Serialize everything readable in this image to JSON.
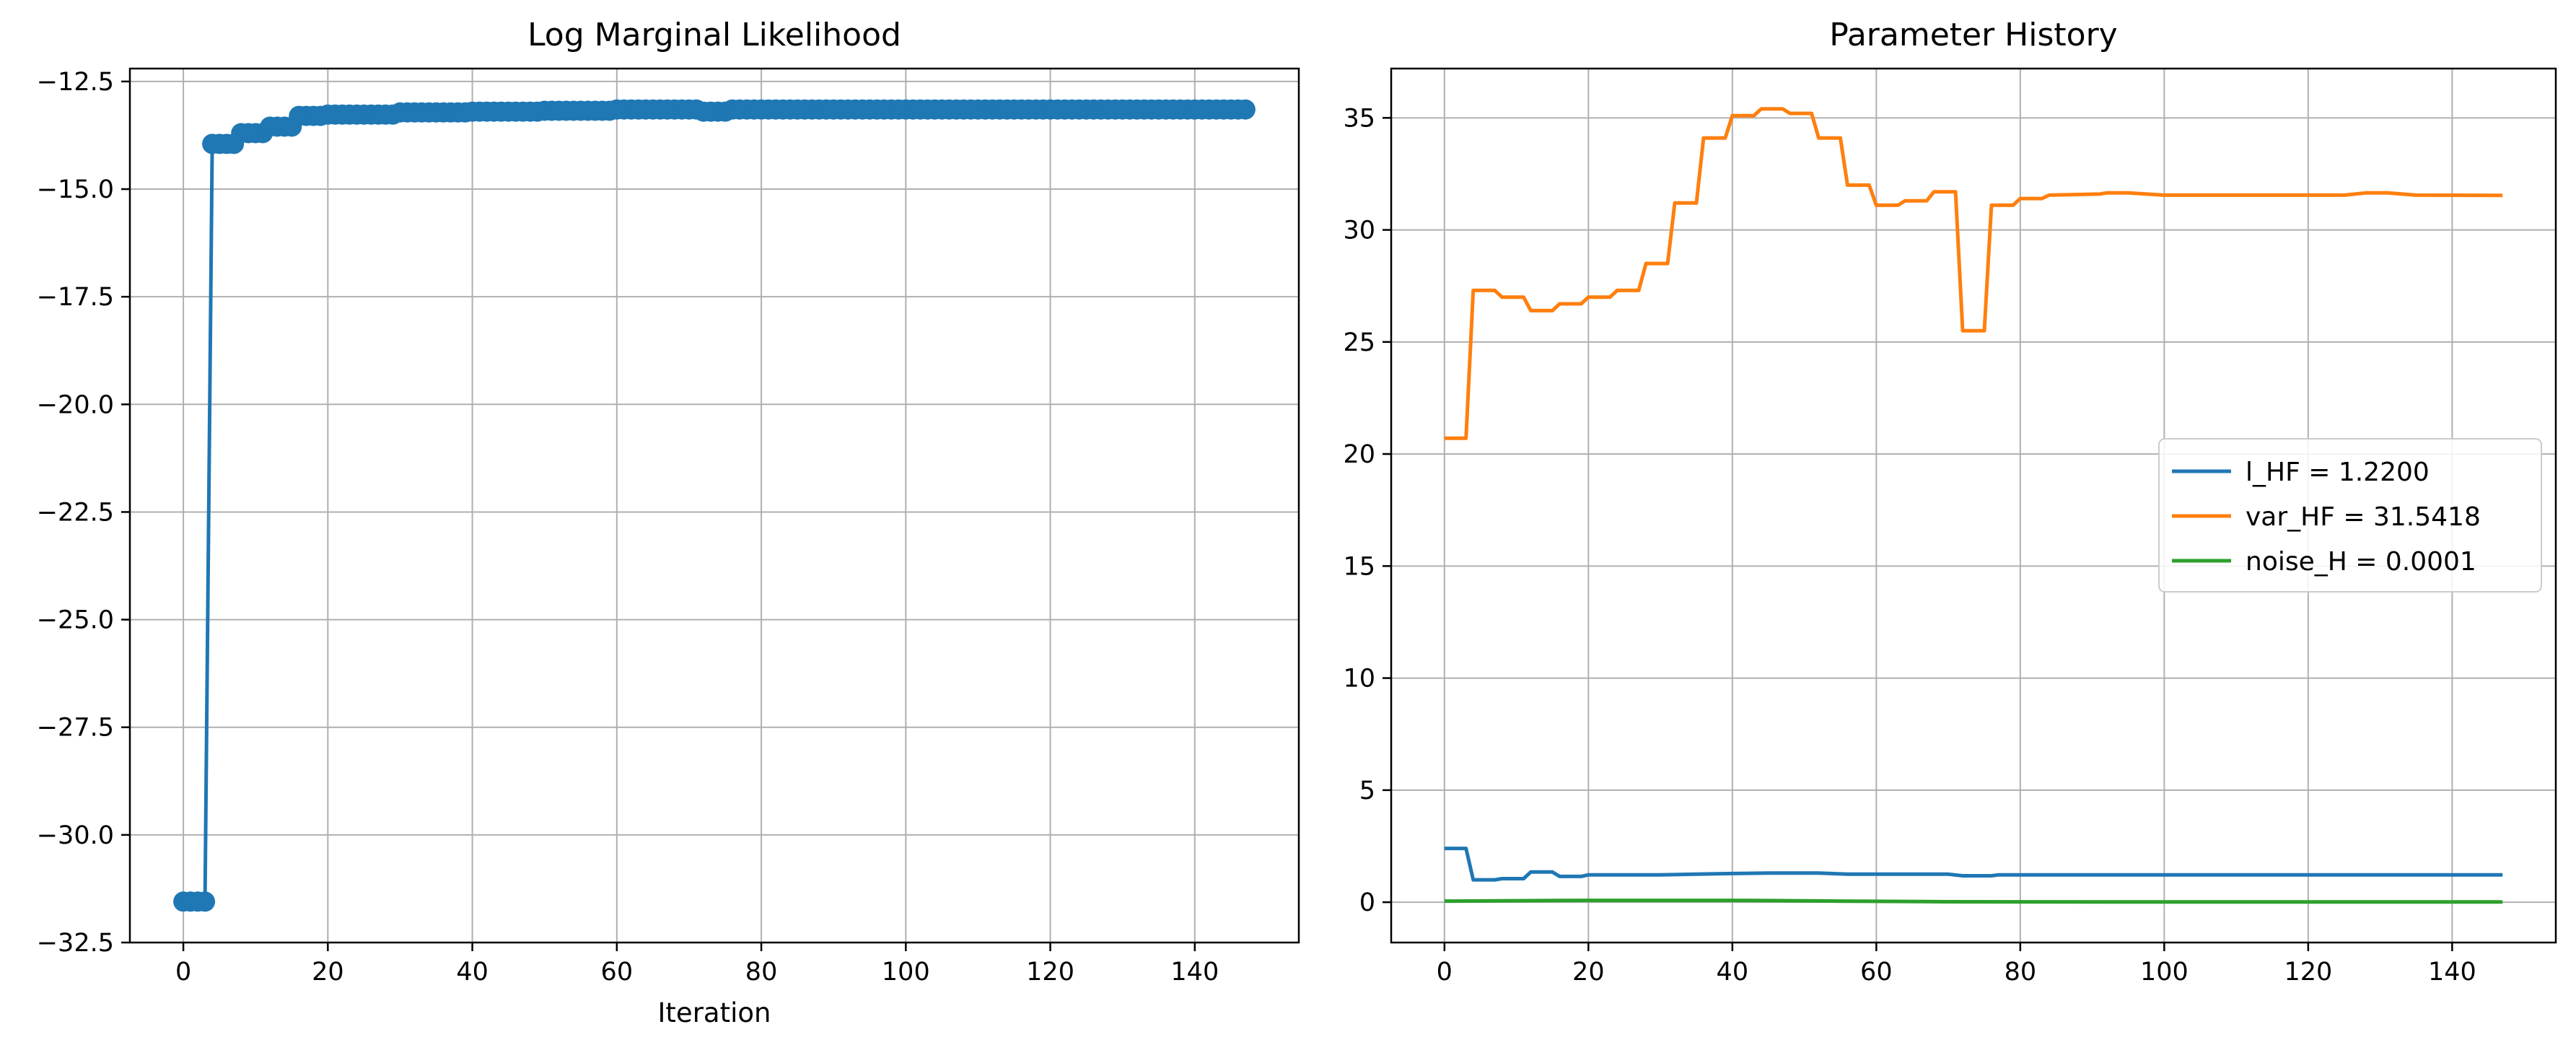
{
  "chart_data": [
    {
      "type": "line",
      "title": "Log Marginal Likelihood",
      "xlabel": "Iteration",
      "ylabel": "",
      "xlim": [
        -7.4,
        154.4
      ],
      "ylim": [
        -32.5,
        -12.2
      ],
      "xticks": [
        0,
        20,
        40,
        60,
        80,
        100,
        120,
        140
      ],
      "xtick_labels": [
        "0",
        "20",
        "40",
        "60",
        "80",
        "100",
        "120",
        "140"
      ],
      "yticks": [
        -32.5,
        -30.0,
        -27.5,
        -25.0,
        -22.5,
        -20.0,
        -17.5,
        -15.0,
        -12.5
      ],
      "ytick_labels": [
        "−32.5",
        "−30.0",
        "−27.5",
        "−25.0",
        "−22.5",
        "−20.0",
        "−17.5",
        "−15.0",
        "−12.5"
      ],
      "grid": true,
      "markers": true,
      "series": [
        {
          "color": "#1f77b4",
          "points": [
            [
              0,
              -31.55
            ],
            [
              3,
              -31.55
            ],
            [
              4,
              -13.95
            ],
            [
              7,
              -13.95
            ],
            [
              8,
              -13.7
            ],
            [
              11,
              -13.7
            ],
            [
              12,
              -13.55
            ],
            [
              15,
              -13.55
            ],
            [
              16,
              -13.3
            ],
            [
              20,
              -13.27
            ],
            [
              30,
              -13.22
            ],
            [
              40,
              -13.2
            ],
            [
              50,
              -13.18
            ],
            [
              60,
              -13.15
            ],
            [
              70,
              -13.15
            ],
            [
              72,
              -13.2
            ],
            [
              75,
              -13.2
            ],
            [
              76,
              -13.15
            ],
            [
              100,
              -13.15
            ],
            [
              147,
              -13.15
            ]
          ]
        }
      ]
    },
    {
      "type": "line",
      "title": "Parameter History",
      "xlabel": "",
      "ylabel": "",
      "xlim": [
        -7.4,
        154.4
      ],
      "ylim": [
        -1.8,
        37.2
      ],
      "xticks": [
        0,
        20,
        40,
        60,
        80,
        100,
        120,
        140
      ],
      "xtick_labels": [
        "0",
        "20",
        "40",
        "60",
        "80",
        "100",
        "120",
        "140"
      ],
      "yticks": [
        0,
        5,
        10,
        15,
        20,
        25,
        30,
        35
      ],
      "ytick_labels": [
        "0",
        "5",
        "10",
        "15",
        "20",
        "25",
        "30",
        "35"
      ],
      "grid": true,
      "markers": false,
      "legend": "center-right",
      "series": [
        {
          "name": "l_HF = 1.2200",
          "color": "#1f77b4",
          "points": [
            [
              0,
              2.4
            ],
            [
              3,
              2.4
            ],
            [
              4,
              1.0
            ],
            [
              7,
              1.0
            ],
            [
              8,
              1.05
            ],
            [
              11,
              1.05
            ],
            [
              12,
              1.35
            ],
            [
              15,
              1.35
            ],
            [
              16,
              1.15
            ],
            [
              19,
              1.15
            ],
            [
              20,
              1.22
            ],
            [
              30,
              1.22
            ],
            [
              35,
              1.25
            ],
            [
              40,
              1.28
            ],
            [
              45,
              1.3
            ],
            [
              52,
              1.3
            ],
            [
              56,
              1.25
            ],
            [
              60,
              1.25
            ],
            [
              70,
              1.25
            ],
            [
              72,
              1.18
            ],
            [
              76,
              1.18
            ],
            [
              77,
              1.22
            ],
            [
              100,
              1.22
            ],
            [
              147,
              1.22
            ]
          ]
        },
        {
          "name": "var_HF = 31.5418",
          "color": "#ff7f0e",
          "points": [
            [
              0,
              20.7
            ],
            [
              3,
              20.7
            ],
            [
              4,
              27.3
            ],
            [
              7,
              27.3
            ],
            [
              8,
              27.0
            ],
            [
              11,
              27.0
            ],
            [
              12,
              26.4
            ],
            [
              15,
              26.4
            ],
            [
              16,
              26.7
            ],
            [
              19,
              26.7
            ],
            [
              20,
              27.0
            ],
            [
              23,
              27.0
            ],
            [
              24,
              27.3
            ],
            [
              27,
              27.3
            ],
            [
              28,
              28.5
            ],
            [
              31,
              28.5
            ],
            [
              32,
              31.2
            ],
            [
              35,
              31.2
            ],
            [
              36,
              34.1
            ],
            [
              39,
              34.1
            ],
            [
              40,
              35.1
            ],
            [
              43,
              35.1
            ],
            [
              44,
              35.4
            ],
            [
              47,
              35.4
            ],
            [
              48,
              35.2
            ],
            [
              51,
              35.2
            ],
            [
              52,
              34.1
            ],
            [
              55,
              34.1
            ],
            [
              56,
              32.0
            ],
            [
              59,
              32.0
            ],
            [
              60,
              31.1
            ],
            [
              63,
              31.1
            ],
            [
              64,
              31.3
            ],
            [
              67,
              31.3
            ],
            [
              68,
              31.7
            ],
            [
              71,
              31.7
            ],
            [
              72,
              25.5
            ],
            [
              75,
              25.5
            ],
            [
              76,
              31.1
            ],
            [
              79,
              31.1
            ],
            [
              80,
              31.4
            ],
            [
              83,
              31.4
            ],
            [
              84,
              31.55
            ],
            [
              91,
              31.6
            ],
            [
              92,
              31.65
            ],
            [
              95,
              31.65
            ],
            [
              100,
              31.55
            ],
            [
              110,
              31.55
            ],
            [
              120,
              31.55
            ],
            [
              125,
              31.55
            ],
            [
              128,
              31.65
            ],
            [
              131,
              31.65
            ],
            [
              135,
              31.55
            ],
            [
              147,
              31.54
            ]
          ]
        },
        {
          "name": "noise_H = 0.0001",
          "color": "#2ca02c",
          "points": [
            [
              0,
              0.05
            ],
            [
              20,
              0.08
            ],
            [
              40,
              0.08
            ],
            [
              55,
              0.05
            ],
            [
              70,
              0.02
            ],
            [
              100,
              0.01
            ],
            [
              147,
              0.01
            ]
          ]
        }
      ]
    }
  ]
}
